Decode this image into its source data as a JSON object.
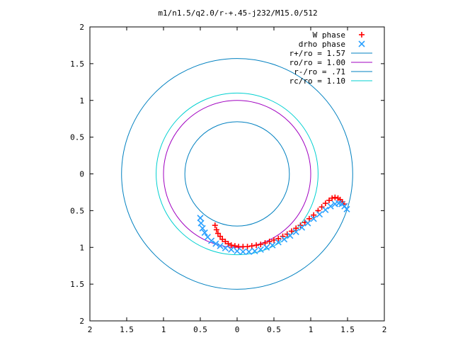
{
  "colors": {
    "w_phase": "#ff0000",
    "drho_phase": "#2aa0ff",
    "r_plus": "#0080c0",
    "r_o": "#a000c0",
    "r_minus": "#0080c0",
    "r_c": "#00d0d0",
    "axes": "#000000",
    "background": "#ffffff"
  },
  "chart_data": {
    "type": "scatter",
    "title": "m1/n1.5/q2.0/r-+.45-j232/M15.0/512",
    "xlabel": "",
    "ylabel": "",
    "xlim": [
      -2,
      2
    ],
    "ylim": [
      -2,
      2
    ],
    "grid": false,
    "legend_position": "top-right",
    "x_ticks": [
      -2,
      -1.5,
      -1,
      -0.5,
      0,
      0.5,
      1,
      1.5,
      2
    ],
    "y_ticks": [
      -2,
      -1.5,
      -1,
      -0.5,
      0,
      0.5,
      1,
      1.5,
      2
    ],
    "x_tick_labels": [
      "2",
      "1.5",
      "1",
      "0.5",
      "0",
      "0.5",
      "1",
      "1.5",
      "2"
    ],
    "y_tick_labels": [
      "2",
      "1.5",
      "1",
      "0.5",
      "0",
      "0.5",
      "1",
      "1.5",
      "2"
    ],
    "series": [
      {
        "name": "W phase",
        "kind": "points",
        "marker": "+",
        "color_key": "w_phase",
        "x": [
          -0.3,
          -0.28,
          -0.26,
          -0.23,
          -0.2,
          -0.16,
          -0.12,
          -0.08,
          -0.03,
          0.02,
          0.08,
          0.14,
          0.2,
          0.26,
          0.32,
          0.38,
          0.44,
          0.5,
          0.56,
          0.62,
          0.68,
          0.74,
          0.8,
          0.86,
          0.92,
          0.98,
          1.04,
          1.1,
          1.15,
          1.2,
          1.25,
          1.29,
          1.33,
          1.37,
          1.4,
          1.43,
          1.45
        ],
        "y": [
          -0.7,
          -0.76,
          -0.81,
          -0.85,
          -0.89,
          -0.92,
          -0.95,
          -0.97,
          -0.98,
          -0.99,
          -0.99,
          -0.99,
          -0.98,
          -0.97,
          -0.96,
          -0.94,
          -0.92,
          -0.9,
          -0.88,
          -0.85,
          -0.82,
          -0.78,
          -0.74,
          -0.7,
          -0.66,
          -0.61,
          -0.56,
          -0.5,
          -0.45,
          -0.4,
          -0.36,
          -0.33,
          -0.32,
          -0.33,
          -0.35,
          -0.38,
          -0.41
        ]
      },
      {
        "name": "drho phase",
        "kind": "points",
        "marker": "x",
        "color_key": "drho_phase",
        "x": [
          -0.5,
          -0.49,
          -0.47,
          -0.44,
          -0.4,
          -0.35,
          -0.29,
          -0.23,
          -0.16,
          -0.08,
          0.0,
          0.08,
          0.16,
          0.24,
          0.32,
          0.4,
          0.48,
          0.56,
          0.64,
          0.72,
          0.8,
          0.88,
          0.96,
          1.04,
          1.12,
          1.2,
          1.27,
          1.33,
          1.38,
          1.42,
          1.46,
          1.49
        ],
        "y": [
          -0.6,
          -0.67,
          -0.74,
          -0.8,
          -0.86,
          -0.91,
          -0.95,
          -0.98,
          -1.01,
          -1.03,
          -1.05,
          -1.06,
          -1.06,
          -1.05,
          -1.03,
          -1.0,
          -0.97,
          -0.93,
          -0.89,
          -0.84,
          -0.79,
          -0.73,
          -0.67,
          -0.61,
          -0.55,
          -0.49,
          -0.44,
          -0.41,
          -0.4,
          -0.41,
          -0.44,
          -0.48
        ]
      },
      {
        "name": "r+/ro = 1.57",
        "kind": "circle",
        "radius": 1.57,
        "color_key": "r_plus"
      },
      {
        "name": "ro/ro = 1.00",
        "kind": "circle",
        "radius": 1.0,
        "color_key": "r_o"
      },
      {
        "name": "r-/ro = .71",
        "kind": "circle",
        "radius": 0.71,
        "color_key": "r_minus"
      },
      {
        "name": "rc/ro = 1.10",
        "kind": "circle",
        "radius": 1.1,
        "color_key": "r_c"
      }
    ]
  }
}
